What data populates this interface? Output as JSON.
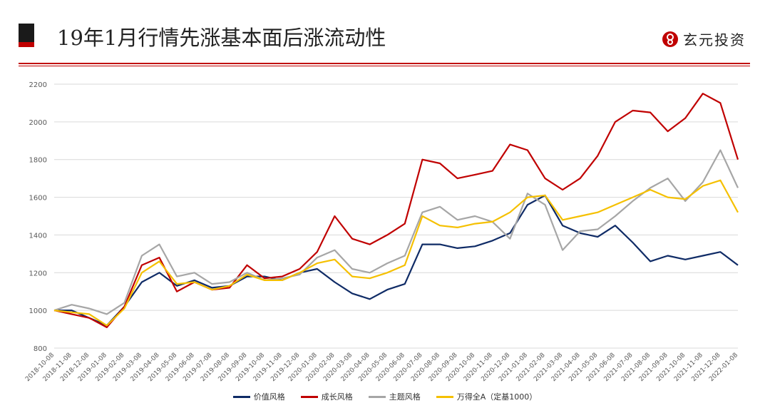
{
  "header": {
    "title": "19年1月行情先涨基本面后涨流动性",
    "brand": "玄元投资"
  },
  "colors": {
    "accent": "#c00000",
    "value": "#0f2b66",
    "growth": "#c00000",
    "theme": "#a6a6a6",
    "index": "#f5c000"
  },
  "chart_data": {
    "type": "line",
    "title": "",
    "xlabel": "",
    "ylabel": "",
    "ylim": [
      800,
      2200
    ],
    "yticks": [
      800,
      1000,
      1200,
      1400,
      1600,
      1800,
      2000,
      2200
    ],
    "grid": true,
    "legend_position": "bottom",
    "x": [
      "2018-10-08",
      "2018-11-08",
      "2018-12-08",
      "2019-01-08",
      "2019-02-08",
      "2019-03-08",
      "2019-04-08",
      "2019-05-08",
      "2019-06-08",
      "2019-07-08",
      "2019-08-08",
      "2019-09-08",
      "2019-10-08",
      "2019-11-08",
      "2019-12-08",
      "2020-01-08",
      "2020-02-08",
      "2020-03-08",
      "2020-04-08",
      "2020-05-08",
      "2020-06-08",
      "2020-07-08",
      "2020-08-08",
      "2020-09-08",
      "2020-10-08",
      "2020-11-08",
      "2020-12-08",
      "2021-01-08",
      "2021-02-08",
      "2021-03-08",
      "2021-04-08",
      "2021-05-08",
      "2021-06-08",
      "2021-07-08",
      "2021-08-08",
      "2021-09-08",
      "2021-10-08",
      "2021-11-08",
      "2021-12-08",
      "2022-01-08"
    ],
    "series": [
      {
        "name": "价值风格",
        "color": "#0f2b66",
        "values": [
          1000,
          1000,
          960,
          920,
          1020,
          1150,
          1200,
          1130,
          1160,
          1120,
          1130,
          1180,
          1180,
          1160,
          1200,
          1220,
          1150,
          1090,
          1060,
          1110,
          1140,
          1350,
          1350,
          1330,
          1340,
          1370,
          1410,
          1560,
          1610,
          1450,
          1410,
          1390,
          1450,
          1360,
          1260,
          1290,
          1270,
          1290,
          1310,
          1240
        ]
      },
      {
        "name": "成长风格",
        "color": "#c00000",
        "values": [
          1000,
          980,
          960,
          910,
          1020,
          1240,
          1280,
          1100,
          1150,
          1110,
          1120,
          1240,
          1170,
          1180,
          1220,
          1310,
          1500,
          1380,
          1350,
          1400,
          1460,
          1800,
          1780,
          1700,
          1720,
          1740,
          1880,
          1850,
          1700,
          1640,
          1700,
          1820,
          2000,
          2060,
          2050,
          1950,
          2020,
          2150,
          2100,
          1800
        ]
      },
      {
        "name": "主题风格",
        "color": "#a6a6a6",
        "values": [
          1000,
          1030,
          1010,
          980,
          1040,
          1290,
          1350,
          1180,
          1200,
          1140,
          1150,
          1200,
          1160,
          1170,
          1190,
          1280,
          1320,
          1220,
          1200,
          1250,
          1290,
          1520,
          1550,
          1480,
          1500,
          1470,
          1380,
          1620,
          1560,
          1320,
          1420,
          1430,
          1500,
          1580,
          1650,
          1700,
          1580,
          1680,
          1850,
          1650
        ]
      },
      {
        "name": "万得全A（定基1000）",
        "color": "#f5c000",
        "values": [
          1000,
          990,
          980,
          920,
          1010,
          1200,
          1260,
          1140,
          1150,
          1110,
          1130,
          1190,
          1160,
          1160,
          1200,
          1250,
          1270,
          1180,
          1170,
          1200,
          1240,
          1500,
          1450,
          1440,
          1460,
          1470,
          1520,
          1600,
          1610,
          1480,
          1500,
          1520,
          1560,
          1600,
          1640,
          1600,
          1590,
          1660,
          1690,
          1520
        ]
      }
    ]
  }
}
